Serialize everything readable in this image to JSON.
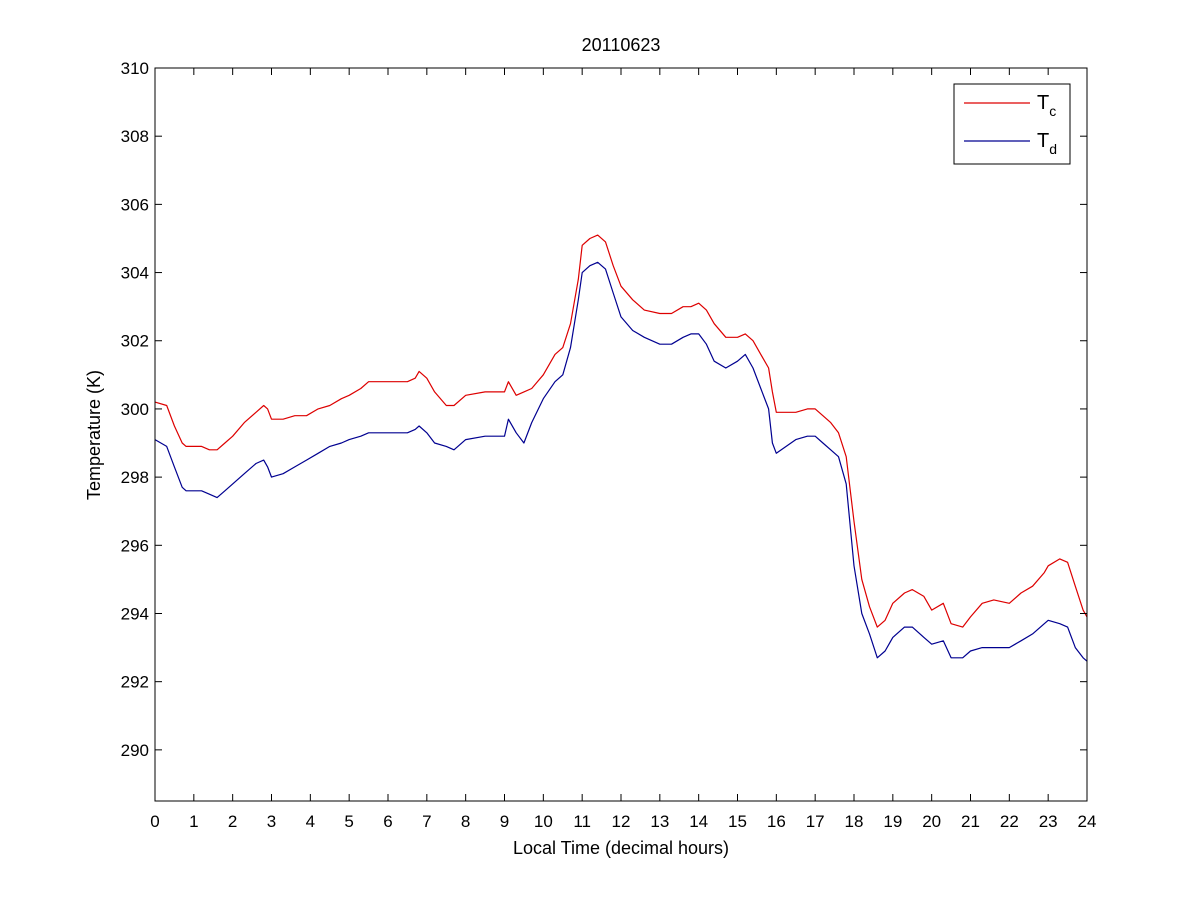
{
  "chart_data": {
    "type": "line",
    "title": "20110623",
    "xlabel": "Local Time (decimal hours)",
    "ylabel": "Temperature (K)",
    "xlim": [
      0,
      24
    ],
    "ylim": [
      288.5,
      310
    ],
    "xticks": [
      "0",
      "1",
      "2",
      "3",
      "4",
      "5",
      "6",
      "7",
      "8",
      "9",
      "10",
      "11",
      "12",
      "13",
      "14",
      "15",
      "16",
      "17",
      "18",
      "19",
      "20",
      "21",
      "22",
      "23",
      "24"
    ],
    "yticks": [
      "290",
      "292",
      "294",
      "296",
      "298",
      "300",
      "302",
      "304",
      "306",
      "308",
      "310"
    ],
    "grid": false,
    "legend_position": "top-right",
    "series": [
      {
        "name": "Tc",
        "symbol": "T",
        "subscript": "c",
        "color": "#dd0000",
        "x": [
          0,
          0.3,
          0.5,
          0.7,
          0.8,
          1.0,
          1.2,
          1.4,
          1.6,
          1.8,
          2.0,
          2.3,
          2.6,
          2.8,
          2.9,
          3.0,
          3.3,
          3.6,
          3.9,
          4.2,
          4.5,
          4.8,
          5.0,
          5.3,
          5.5,
          6.0,
          6.5,
          6.7,
          6.8,
          7.0,
          7.2,
          7.5,
          7.7,
          8.0,
          8.5,
          9.0,
          9.1,
          9.3,
          9.5,
          9.7,
          10.0,
          10.3,
          10.5,
          10.7,
          10.9,
          11.0,
          11.2,
          11.4,
          11.6,
          11.8,
          12.0,
          12.3,
          12.6,
          13.0,
          13.3,
          13.6,
          13.8,
          14.0,
          14.2,
          14.4,
          14.7,
          15.0,
          15.2,
          15.4,
          15.6,
          15.8,
          15.9,
          16.0,
          16.5,
          16.8,
          17.0,
          17.2,
          17.4,
          17.6,
          17.8,
          18.0,
          18.2,
          18.4,
          18.6,
          18.8,
          19.0,
          19.3,
          19.5,
          19.8,
          20.0,
          20.3,
          20.5,
          20.8,
          21.0,
          21.3,
          21.6,
          22.0,
          22.3,
          22.6,
          22.9,
          23.0,
          23.3,
          23.5,
          23.7,
          23.9,
          24.0
        ],
        "y": [
          300.2,
          300.1,
          299.5,
          299.0,
          298.9,
          298.9,
          298.9,
          298.8,
          298.8,
          299.0,
          299.2,
          299.6,
          299.9,
          300.1,
          300.0,
          299.7,
          299.7,
          299.8,
          299.8,
          300.0,
          300.1,
          300.3,
          300.4,
          300.6,
          300.8,
          300.8,
          300.8,
          300.9,
          301.1,
          300.9,
          300.5,
          300.1,
          300.1,
          300.4,
          300.5,
          300.5,
          300.8,
          300.4,
          300.5,
          300.6,
          301.0,
          301.6,
          301.8,
          302.5,
          303.8,
          304.8,
          305.0,
          305.1,
          304.9,
          304.2,
          303.6,
          303.2,
          302.9,
          302.8,
          302.8,
          303.0,
          303.0,
          303.1,
          302.9,
          302.5,
          302.1,
          302.1,
          302.2,
          302.0,
          301.6,
          301.2,
          300.5,
          299.9,
          299.9,
          300.0,
          300.0,
          299.8,
          299.6,
          299.3,
          298.6,
          296.7,
          295.0,
          294.2,
          293.6,
          293.8,
          294.3,
          294.6,
          294.7,
          294.5,
          294.1,
          294.3,
          293.7,
          293.6,
          293.9,
          294.3,
          294.4,
          294.3,
          294.6,
          294.8,
          295.2,
          295.4,
          295.6,
          295.5,
          294.8,
          294.1,
          293.9
        ]
      },
      {
        "name": "Td",
        "symbol": "T",
        "subscript": "d",
        "color": "#000090",
        "x": [
          0,
          0.3,
          0.5,
          0.7,
          0.8,
          1.0,
          1.2,
          1.4,
          1.6,
          1.8,
          2.0,
          2.3,
          2.6,
          2.8,
          2.9,
          3.0,
          3.3,
          3.6,
          3.9,
          4.2,
          4.5,
          4.8,
          5.0,
          5.3,
          5.5,
          6.0,
          6.5,
          6.7,
          6.8,
          7.0,
          7.2,
          7.5,
          7.7,
          8.0,
          8.5,
          9.0,
          9.1,
          9.3,
          9.5,
          9.7,
          10.0,
          10.3,
          10.5,
          10.7,
          10.9,
          11.0,
          11.2,
          11.4,
          11.6,
          11.8,
          12.0,
          12.3,
          12.6,
          13.0,
          13.3,
          13.6,
          13.8,
          14.0,
          14.2,
          14.4,
          14.7,
          15.0,
          15.2,
          15.4,
          15.6,
          15.8,
          15.9,
          16.0,
          16.5,
          16.8,
          17.0,
          17.2,
          17.4,
          17.6,
          17.8,
          18.0,
          18.2,
          18.4,
          18.6,
          18.8,
          19.0,
          19.3,
          19.5,
          19.8,
          20.0,
          20.3,
          20.5,
          20.8,
          21.0,
          21.3,
          21.6,
          22.0,
          22.3,
          22.6,
          22.9,
          23.0,
          23.3,
          23.5,
          23.7,
          23.9,
          24.0
        ],
        "y": [
          299.1,
          298.9,
          298.3,
          297.7,
          297.6,
          297.6,
          297.6,
          297.5,
          297.4,
          297.6,
          297.8,
          298.1,
          298.4,
          298.5,
          298.3,
          298.0,
          298.1,
          298.3,
          298.5,
          298.7,
          298.9,
          299.0,
          299.1,
          299.2,
          299.3,
          299.3,
          299.3,
          299.4,
          299.5,
          299.3,
          299.0,
          298.9,
          298.8,
          299.1,
          299.2,
          299.2,
          299.7,
          299.3,
          299.0,
          299.6,
          300.3,
          300.8,
          301.0,
          301.8,
          303.2,
          304.0,
          304.2,
          304.3,
          304.1,
          303.4,
          302.7,
          302.3,
          302.1,
          301.9,
          301.9,
          302.1,
          302.2,
          302.2,
          301.9,
          301.4,
          301.2,
          301.4,
          301.6,
          301.2,
          300.6,
          300.0,
          299.0,
          298.7,
          299.1,
          299.2,
          299.2,
          299.0,
          298.8,
          298.6,
          297.8,
          295.4,
          294.0,
          293.4,
          292.7,
          292.9,
          293.3,
          293.6,
          293.6,
          293.3,
          293.1,
          293.2,
          292.7,
          292.7,
          292.9,
          293.0,
          293.0,
          293.0,
          293.2,
          293.4,
          293.7,
          293.8,
          293.7,
          293.6,
          293.0,
          292.7,
          292.6
        ]
      }
    ]
  }
}
